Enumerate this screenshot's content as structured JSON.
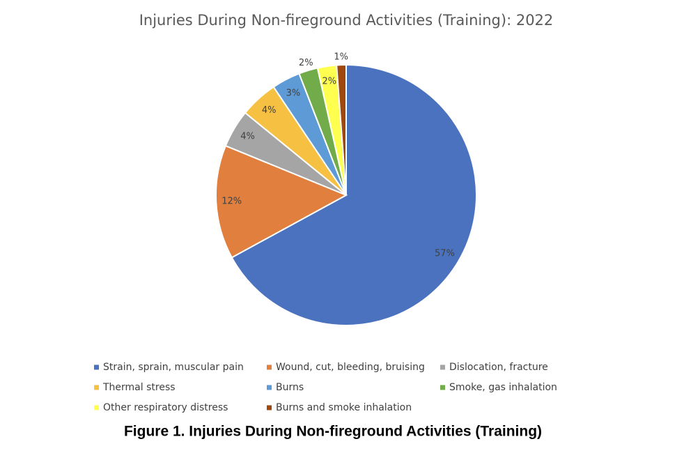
{
  "chart_data": {
    "type": "pie",
    "title": "Injuries During Non-fireground Activities (Training): 2022",
    "categories": [
      "Strain, sprain, muscular pain",
      "Wound, cut, bleeding, bruising",
      "Dislocation, fracture",
      "Thermal stress",
      "Burns",
      "Smoke, gas inhalation",
      "Other respiratory distress",
      "Burns and smoke inhalation"
    ],
    "values": [
      57,
      12,
      4,
      4,
      3,
      2,
      2,
      1
    ],
    "value_labels": [
      "57%",
      "12%",
      "4%",
      "4%",
      "3%",
      "2%",
      "2%",
      "1%"
    ],
    "colors": [
      "#4a72be",
      "#e07f3e",
      "#a5a5a5",
      "#f6c143",
      "#5e9bd6",
      "#72ab4a",
      "#ffff4f",
      "#9e480e"
    ],
    "legend": "bottom"
  },
  "caption": "Figure 1. Injuries During Non-fireground Activities (Training)"
}
